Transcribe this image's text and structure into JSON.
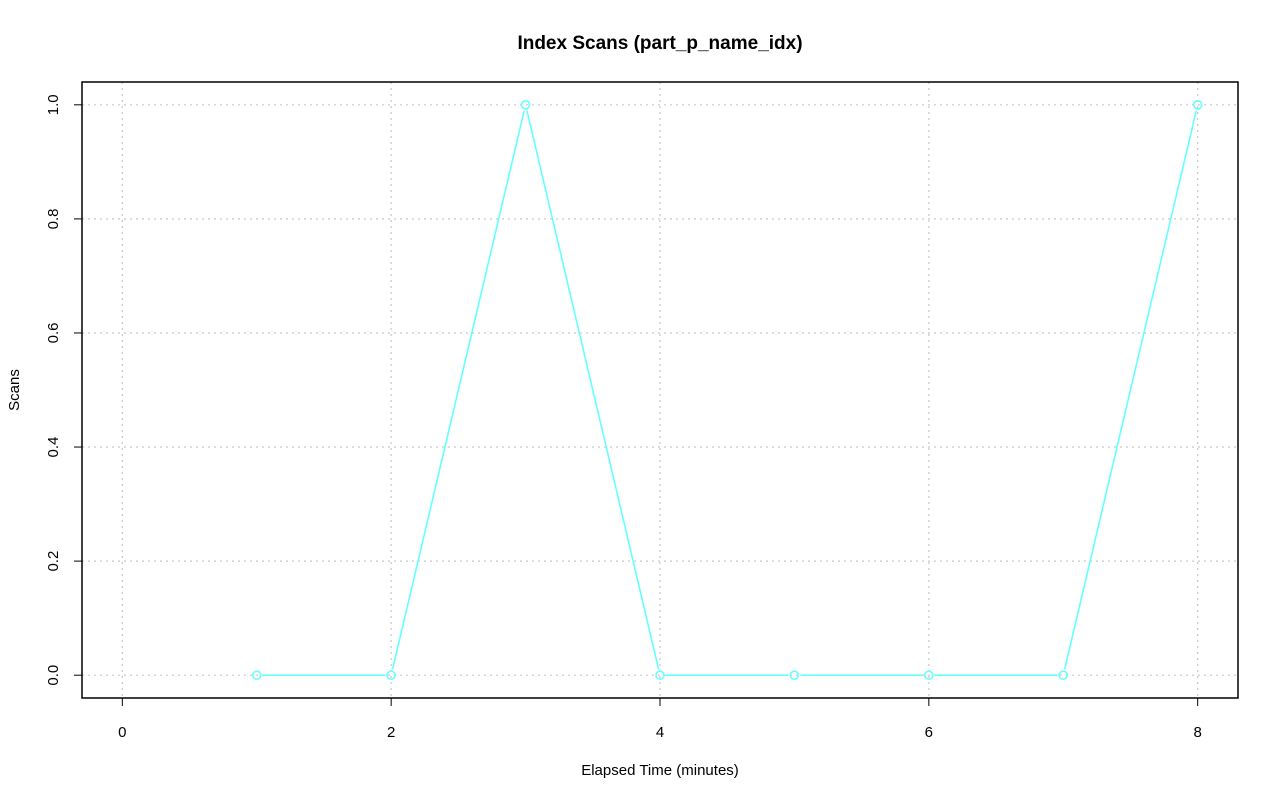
{
  "chart_data": {
    "type": "line",
    "title": "Index Scans (part_p_name_idx)",
    "xlabel": "Elapsed Time (minutes)",
    "ylabel": "Scans",
    "xlim": [
      -0.3,
      8.3
    ],
    "ylim": [
      -0.04,
      1.04
    ],
    "x_ticks": [
      0,
      2,
      4,
      6,
      8
    ],
    "y_ticks": [
      0.0,
      0.2,
      0.4,
      0.6,
      0.8,
      1.0
    ],
    "x_tick_labels": [
      "0",
      "2",
      "4",
      "6",
      "8"
    ],
    "y_tick_labels": [
      "0.0",
      "0.2",
      "0.4",
      "0.6",
      "0.8",
      "1.0"
    ],
    "grid": true,
    "legend": "none",
    "series": [
      {
        "name": "part_p_name_idx",
        "color": "#66ffff",
        "marker": "open-circle",
        "x": [
          1,
          2,
          3,
          4,
          5,
          6,
          7,
          8
        ],
        "values": [
          0,
          0,
          1,
          0,
          0,
          0,
          0,
          1
        ]
      }
    ]
  }
}
